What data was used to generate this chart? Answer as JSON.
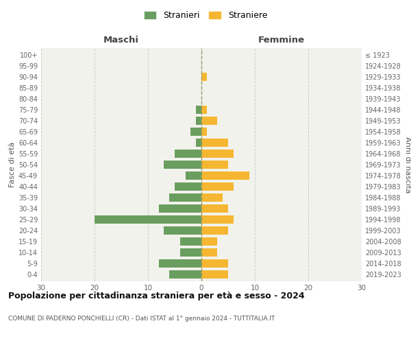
{
  "age_groups": [
    "0-4",
    "5-9",
    "10-14",
    "15-19",
    "20-24",
    "25-29",
    "30-34",
    "35-39",
    "40-44",
    "45-49",
    "50-54",
    "55-59",
    "60-64",
    "65-69",
    "70-74",
    "75-79",
    "80-84",
    "85-89",
    "90-94",
    "95-99",
    "100+"
  ],
  "birth_years": [
    "2019-2023",
    "2014-2018",
    "2009-2013",
    "2004-2008",
    "1999-2003",
    "1994-1998",
    "1989-1993",
    "1984-1988",
    "1979-1983",
    "1974-1978",
    "1969-1973",
    "1964-1968",
    "1959-1963",
    "1954-1958",
    "1949-1953",
    "1944-1948",
    "1939-1943",
    "1934-1938",
    "1929-1933",
    "1924-1928",
    "≤ 1923"
  ],
  "maschi": [
    6,
    8,
    4,
    4,
    7,
    20,
    8,
    6,
    5,
    3,
    7,
    5,
    1,
    2,
    1,
    1,
    0,
    0,
    0,
    0,
    0
  ],
  "femmine": [
    5,
    5,
    3,
    3,
    5,
    6,
    5,
    4,
    6,
    9,
    5,
    6,
    5,
    1,
    3,
    1,
    0,
    0,
    1,
    0,
    0
  ],
  "color_maschi": "#6a9e5f",
  "color_femmine": "#f5b731",
  "background_color": "#ffffff",
  "plot_bg_color": "#f2f2ed",
  "grid_color": "#cccccc",
  "title": "Popolazione per cittadinanza straniera per età e sesso - 2024",
  "subtitle": "COMUNE DI PADERNO PONCHIELLI (CR) - Dati ISTAT al 1° gennaio 2024 - TUTTITALIA.IT",
  "xlabel_left": "Maschi",
  "xlabel_right": "Femmine",
  "ylabel_left": "Fasce di età",
  "ylabel_right": "Anni di nascita",
  "legend_maschi": "Stranieri",
  "legend_femmine": "Straniere",
  "xlim": 30,
  "center_line_color": "#999966",
  "bar_height": 0.75
}
